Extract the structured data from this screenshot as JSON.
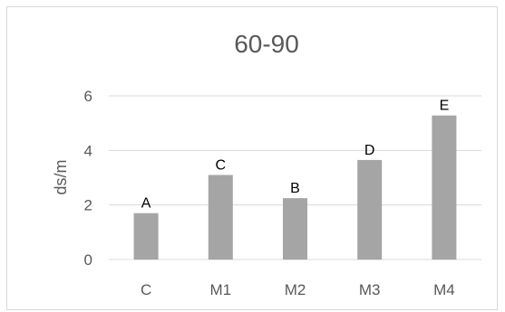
{
  "chart_data": {
    "type": "bar",
    "title": "60-90",
    "xlabel": "",
    "ylabel": "ds/m",
    "categories": [
      "C",
      "M1",
      "M2",
      "M3",
      "M4"
    ],
    "values": [
      1.7,
      3.1,
      2.25,
      3.65,
      5.28
    ],
    "data_labels": [
      "A",
      "C",
      "B",
      "D",
      "E"
    ],
    "ylim": [
      0,
      6
    ],
    "yticks": [
      0,
      2,
      4,
      6
    ],
    "grid": true,
    "legend": "none",
    "colors": {
      "bar": "#a5a5a5",
      "grid": "#d9d9d9",
      "text": "#595959"
    }
  }
}
